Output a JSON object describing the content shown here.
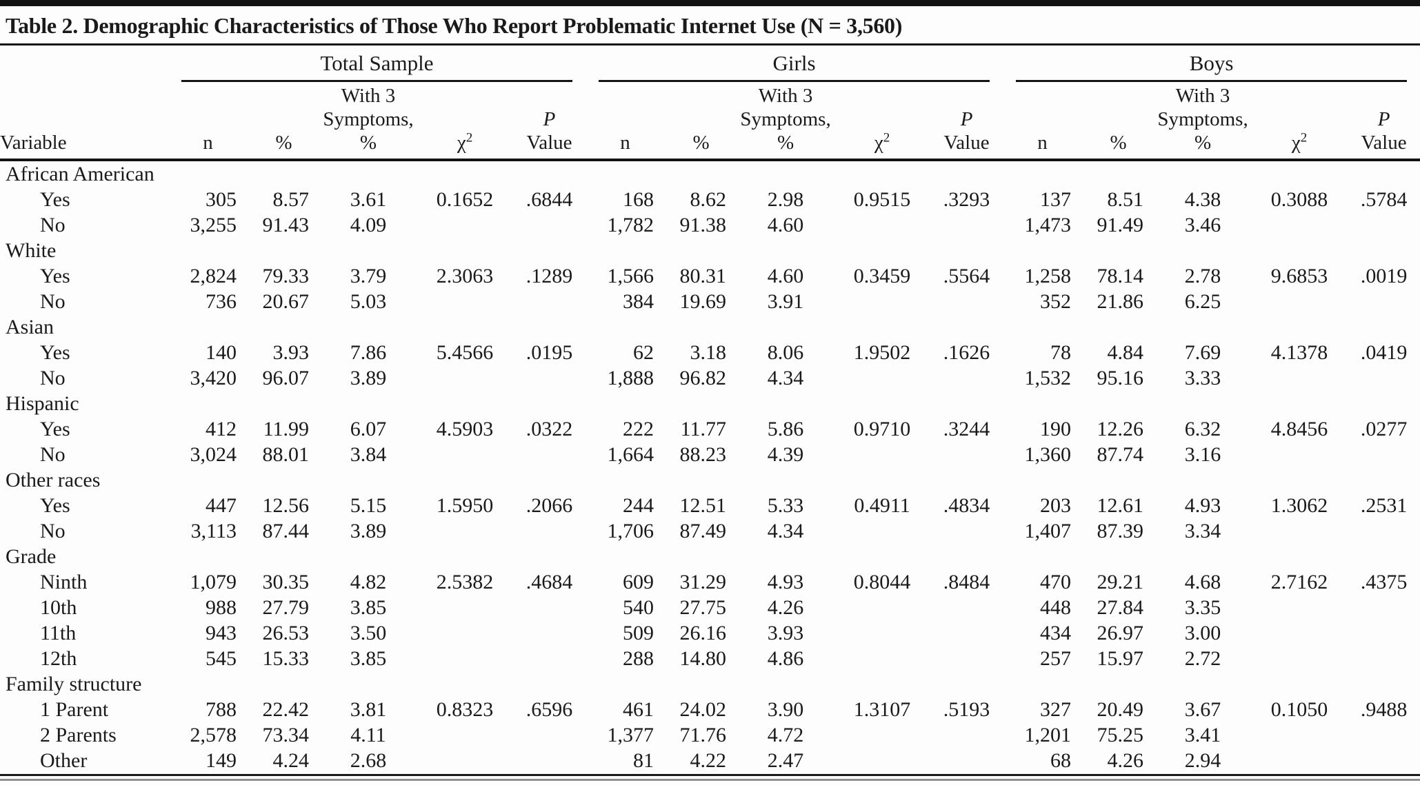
{
  "table": {
    "title": "Table 2. Demographic Characteristics of Those Who Report Problematic Internet Use (N = 3,560)",
    "groups": [
      "Total Sample",
      "Girls",
      "Boys"
    ],
    "col_headers": {
      "variable": "Variable",
      "n": "n",
      "pct": "%",
      "sym": "With 3\nSymptoms,\n%",
      "chi": "χ",
      "chi_sup": "2",
      "p_line1": "P",
      "p_line2": "Value"
    },
    "rows": [
      {
        "label": "African American",
        "indent": false,
        "cells": []
      },
      {
        "label": "Yes",
        "indent": true,
        "cells": [
          "305",
          "8.57",
          "3.61",
          "0.1652",
          ".6844",
          "168",
          "8.62",
          "2.98",
          "0.9515",
          ".3293",
          "137",
          "8.51",
          "4.38",
          "0.3088",
          ".5784"
        ]
      },
      {
        "label": "No",
        "indent": true,
        "cells": [
          "3,255",
          "91.43",
          "4.09",
          "",
          "",
          "1,782",
          "91.38",
          "4.60",
          "",
          "",
          "1,473",
          "91.49",
          "3.46",
          "",
          ""
        ]
      },
      {
        "label": "White",
        "indent": false,
        "cells": []
      },
      {
        "label": "Yes",
        "indent": true,
        "cells": [
          "2,824",
          "79.33",
          "3.79",
          "2.3063",
          ".1289",
          "1,566",
          "80.31",
          "4.60",
          "0.3459",
          ".5564",
          "1,258",
          "78.14",
          "2.78",
          "9.6853",
          ".0019"
        ]
      },
      {
        "label": "No",
        "indent": true,
        "cells": [
          "736",
          "20.67",
          "5.03",
          "",
          "",
          "384",
          "19.69",
          "3.91",
          "",
          "",
          "352",
          "21.86",
          "6.25",
          "",
          ""
        ]
      },
      {
        "label": "Asian",
        "indent": false,
        "cells": []
      },
      {
        "label": "Yes",
        "indent": true,
        "cells": [
          "140",
          "3.93",
          "7.86",
          "5.4566",
          ".0195",
          "62",
          "3.18",
          "8.06",
          "1.9502",
          ".1626",
          "78",
          "4.84",
          "7.69",
          "4.1378",
          ".0419"
        ]
      },
      {
        "label": "No",
        "indent": true,
        "cells": [
          "3,420",
          "96.07",
          "3.89",
          "",
          "",
          "1,888",
          "96.82",
          "4.34",
          "",
          "",
          "1,532",
          "95.16",
          "3.33",
          "",
          ""
        ]
      },
      {
        "label": "Hispanic",
        "indent": false,
        "cells": []
      },
      {
        "label": "Yes",
        "indent": true,
        "cells": [
          "412",
          "11.99",
          "6.07",
          "4.5903",
          ".0322",
          "222",
          "11.77",
          "5.86",
          "0.9710",
          ".3244",
          "190",
          "12.26",
          "6.32",
          "4.8456",
          ".0277"
        ]
      },
      {
        "label": "No",
        "indent": true,
        "cells": [
          "3,024",
          "88.01",
          "3.84",
          "",
          "",
          "1,664",
          "88.23",
          "4.39",
          "",
          "",
          "1,360",
          "87.74",
          "3.16",
          "",
          ""
        ]
      },
      {
        "label": "Other races",
        "indent": false,
        "cells": []
      },
      {
        "label": "Yes",
        "indent": true,
        "cells": [
          "447",
          "12.56",
          "5.15",
          "1.5950",
          ".2066",
          "244",
          "12.51",
          "5.33",
          "0.4911",
          ".4834",
          "203",
          "12.61",
          "4.93",
          "1.3062",
          ".2531"
        ]
      },
      {
        "label": "No",
        "indent": true,
        "cells": [
          "3,113",
          "87.44",
          "3.89",
          "",
          "",
          "1,706",
          "87.49",
          "4.34",
          "",
          "",
          "1,407",
          "87.39",
          "3.34",
          "",
          ""
        ]
      },
      {
        "label": "Grade",
        "indent": false,
        "cells": []
      },
      {
        "label": "Ninth",
        "indent": true,
        "cells": [
          "1,079",
          "30.35",
          "4.82",
          "2.5382",
          ".4684",
          "609",
          "31.29",
          "4.93",
          "0.8044",
          ".8484",
          "470",
          "29.21",
          "4.68",
          "2.7162",
          ".4375"
        ]
      },
      {
        "label": "10th",
        "indent": true,
        "cells": [
          "988",
          "27.79",
          "3.85",
          "",
          "",
          "540",
          "27.75",
          "4.26",
          "",
          "",
          "448",
          "27.84",
          "3.35",
          "",
          ""
        ]
      },
      {
        "label": "11th",
        "indent": true,
        "cells": [
          "943",
          "26.53",
          "3.50",
          "",
          "",
          "509",
          "26.16",
          "3.93",
          "",
          "",
          "434",
          "26.97",
          "3.00",
          "",
          ""
        ]
      },
      {
        "label": "12th",
        "indent": true,
        "cells": [
          "545",
          "15.33",
          "3.85",
          "",
          "",
          "288",
          "14.80",
          "4.86",
          "",
          "",
          "257",
          "15.97",
          "2.72",
          "",
          ""
        ]
      },
      {
        "label": "Family structure",
        "indent": false,
        "cells": []
      },
      {
        "label": "1 Parent",
        "indent": true,
        "cells": [
          "788",
          "22.42",
          "3.81",
          "0.8323",
          ".6596",
          "461",
          "24.02",
          "3.90",
          "1.3107",
          ".5193",
          "327",
          "20.49",
          "3.67",
          "0.1050",
          ".9488"
        ]
      },
      {
        "label": "2 Parents",
        "indent": true,
        "cells": [
          "2,578",
          "73.34",
          "4.11",
          "",
          "",
          "1,377",
          "71.76",
          "4.72",
          "",
          "",
          "1,201",
          "75.25",
          "3.41",
          "",
          ""
        ]
      },
      {
        "label": "Other",
        "indent": true,
        "cells": [
          "149",
          "4.24",
          "2.68",
          "",
          "",
          "81",
          "4.22",
          "2.47",
          "",
          "",
          "68",
          "4.26",
          "2.94",
          "",
          ""
        ]
      }
    ]
  }
}
